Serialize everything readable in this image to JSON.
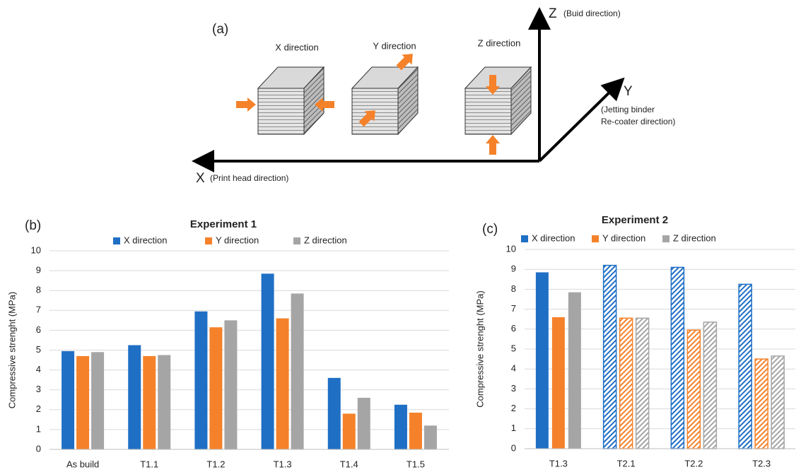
{
  "diagram": {
    "panel_label": "(a)",
    "cube_labels": [
      "X direction",
      "Y direction",
      "Z direction"
    ],
    "z_axis": "Z",
    "z_axis_note": "(Buid direction)",
    "y_axis": "Y",
    "y_axis_note": [
      "(Jetting binder",
      "Re-coater direction)"
    ],
    "x_axis": "X",
    "x_axis_note": "(Print head direction)"
  },
  "chart_data": [
    {
      "type": "bar",
      "panel_label": "(b)",
      "title": "Experiment 1",
      "y_label": "Compressive strenght (MPa)",
      "categories": [
        "As build",
        "T1.1",
        "T1.2",
        "T1.3",
        "T1.4",
        "T1.5"
      ],
      "series": [
        {
          "name": "X direction",
          "color": "#1f6fc5",
          "values": [
            4.95,
            5.25,
            6.95,
            8.85,
            3.6,
            2.25
          ]
        },
        {
          "name": "Y direction",
          "color": "#f5822a",
          "values": [
            4.7,
            4.7,
            6.15,
            6.6,
            1.8,
            1.85
          ]
        },
        {
          "name": "Z direction",
          "color": "#a5a5a5",
          "values": [
            4.9,
            4.75,
            6.5,
            7.85,
            2.6,
            1.2
          ]
        }
      ],
      "hatched": [
        false,
        false,
        false,
        false,
        false,
        false
      ],
      "ylim": [
        0,
        10
      ],
      "yticks": [
        0,
        1,
        2,
        3,
        4,
        5,
        6,
        7,
        8,
        9,
        10
      ],
      "grid": true,
      "legend": "top"
    },
    {
      "type": "bar",
      "panel_label": "(c)",
      "title": "Experiment 2",
      "y_label": "Compressive strenght (MPa)",
      "categories": [
        "T1.3",
        "T2.1",
        "T2.2",
        "T2.3"
      ],
      "series": [
        {
          "name": "X direction",
          "color": "#1f6fc5",
          "values": [
            8.85,
            9.2,
            9.1,
            8.25
          ]
        },
        {
          "name": "Y direction",
          "color": "#f5822a",
          "values": [
            6.6,
            6.55,
            5.95,
            4.5
          ]
        },
        {
          "name": "Z direction",
          "color": "#a5a5a5",
          "values": [
            7.85,
            6.55,
            6.35,
            4.65
          ]
        }
      ],
      "hatched": [
        false,
        true,
        true,
        true
      ],
      "ylim": [
        0,
        10
      ],
      "yticks": [
        0,
        1,
        2,
        3,
        4,
        5,
        6,
        7,
        8,
        9,
        10
      ],
      "grid": true,
      "legend": "top"
    }
  ]
}
